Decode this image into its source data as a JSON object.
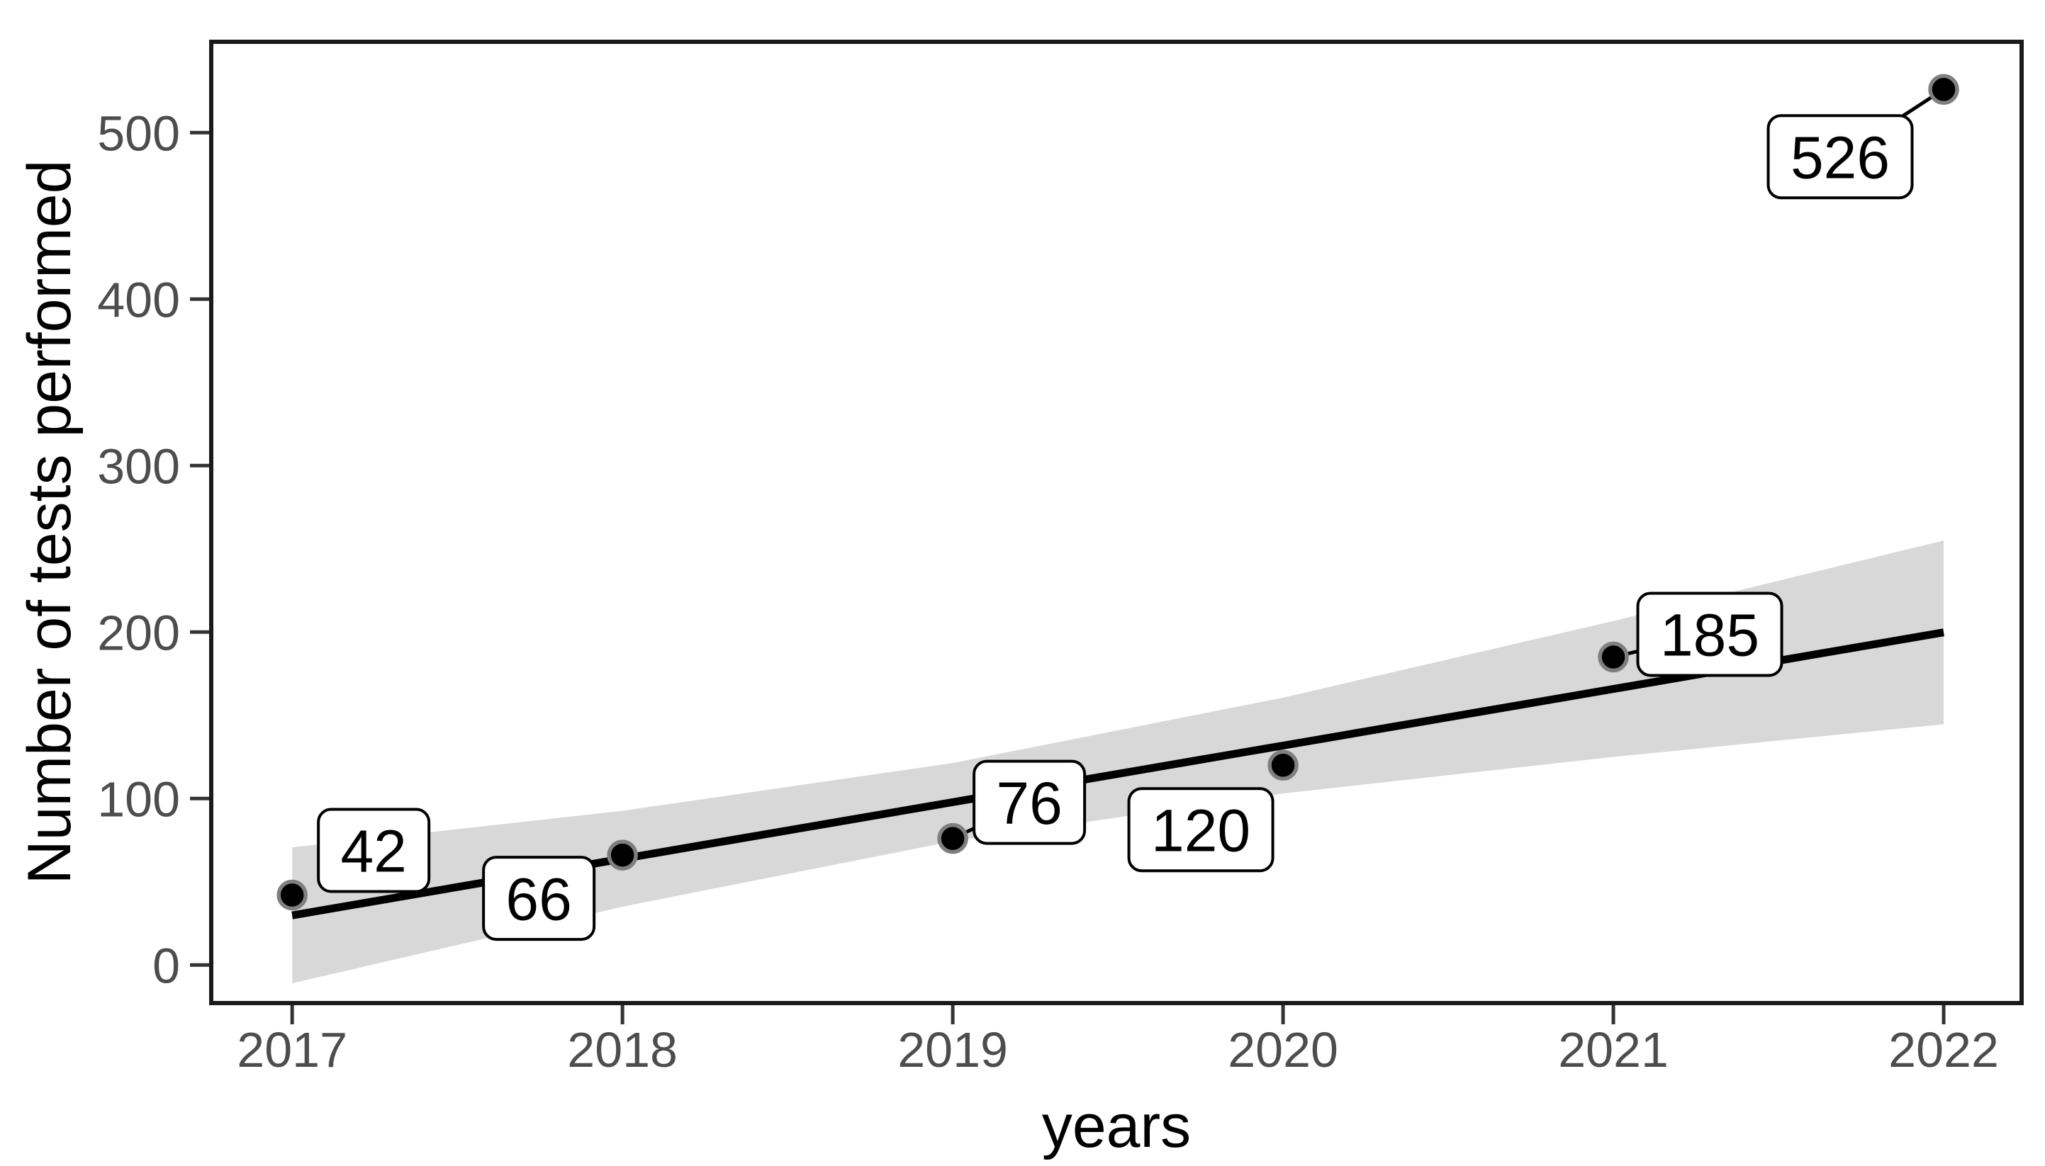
{
  "chart_data": {
    "type": "scatter",
    "title": "",
    "xlabel": "years",
    "ylabel": "Number of tests performed",
    "x": [
      2017,
      2018,
      2019,
      2020,
      2021,
      2022
    ],
    "y": [
      42,
      66,
      76,
      120,
      185,
      526
    ],
    "point_labels": [
      "42",
      "66",
      "76",
      "120",
      "185",
      "526"
    ],
    "x_tick_labels": [
      "2017",
      "2018",
      "2019",
      "2020",
      "2021",
      "2022"
    ],
    "y_tick_values": [
      0,
      100,
      200,
      300,
      400,
      500
    ],
    "y_tick_labels": [
      "0",
      "100",
      "200",
      "300",
      "400",
      "500"
    ],
    "xlim": [
      2016.755,
      2022.236
    ],
    "ylim": [
      -22.9,
      554.6
    ],
    "grid": false,
    "legend_position": "none",
    "trend": {
      "type": "linear-fit-with-ci",
      "x": [
        2017,
        2018,
        2019,
        2020,
        2021,
        2022
      ],
      "fit": [
        29.8,
        63.8,
        97.8,
        131.8,
        165.8,
        199.8
      ],
      "ci_upper": [
        70.6,
        92.6,
        121.3,
        160.6,
        206.6,
        255.0
      ],
      "ci_lower": [
        -11.0,
        35.0,
        74.3,
        103.0,
        125.0,
        144.6
      ]
    },
    "colors": {
      "background": "#ffffff",
      "point_fill": "#000000",
      "point_ring": "#7f7f7f",
      "trend_line": "#000000",
      "ci_band": "#d8d8d8",
      "tick_mark": "#333333",
      "tick_label": "#4d4d4d",
      "axis_title": "#000000",
      "panel_border": "#1a1a1a",
      "label_box_fill": "#ffffff",
      "label_box_border": "#000000",
      "label_text": "#000000"
    }
  }
}
